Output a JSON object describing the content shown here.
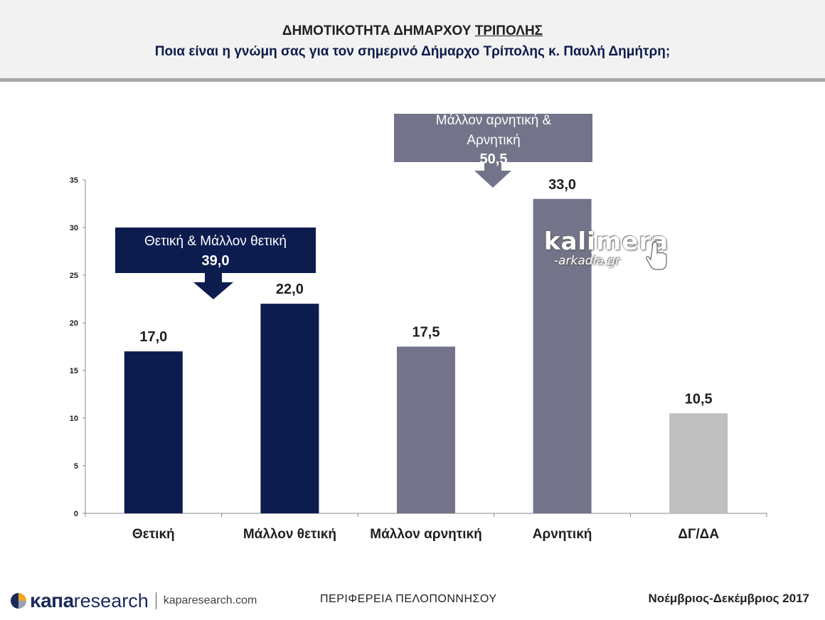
{
  "header": {
    "title_prefix": "ΔΗΜΟΤΙΚΟΤΗΤΑ ΔΗΜΑΡΧΟΥ ",
    "title_underlined": "ΤΡΙΠΟΛΗΣ",
    "subtitle": "Ποια είναι η γνώμη σας για τον σημερινό Δήμαρχο Τρίπολης κ. Παυλή Δημήτρη;"
  },
  "chart_data": {
    "type": "bar",
    "categories": [
      "Θετική",
      "Μάλλον θετική",
      "Μάλλον αρνητική",
      "Αρνητική",
      "ΔΓ/ΔΑ"
    ],
    "values": [
      17.0,
      22.0,
      17.5,
      33.0,
      10.5
    ],
    "value_labels": [
      "17,0",
      "22,0",
      "17,5",
      "33,0",
      "10,5"
    ],
    "bar_colors": [
      "#0c1c4f",
      "#0c1c4f",
      "#737389",
      "#737389",
      "#bfbfbf"
    ],
    "ylim": [
      0,
      35
    ],
    "yticks": [
      "0",
      "5",
      "10",
      "15",
      "20",
      "25",
      "30",
      "35"
    ],
    "grid": false,
    "callouts": [
      {
        "label": "Θετική & Μάλλον θετική",
        "value": "39,0",
        "color": "#0c1c4f"
      },
      {
        "label_line1": "Μάλλον αρνητική &",
        "label_line2": "Αρνητική",
        "value": "50,5",
        "color": "#737389"
      }
    ]
  },
  "watermark": {
    "main": "kalimera",
    "sub": "-arkadia.gr"
  },
  "footer": {
    "logo_kapa": "κапа",
    "logo_research": "research",
    "site": "kaparesearch.com",
    "region": "ΠΕΡΙΦΕΡΕΙΑ ΠΕΛΟΠΟΝΝΗΣΟΥ",
    "date": "Νοέμβριος-Δεκέμβριος 2017"
  }
}
